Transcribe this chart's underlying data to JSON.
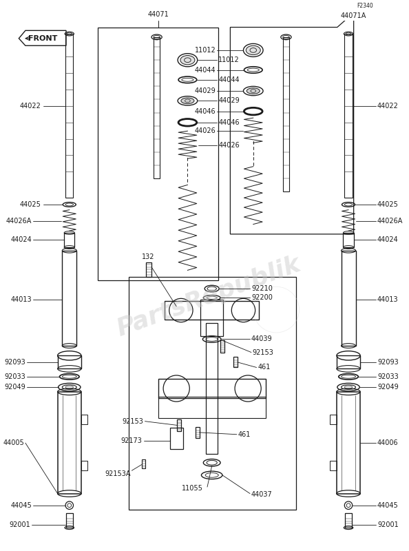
{
  "bg_color": "#ffffff",
  "line_color": "#1a1a1a",
  "label_color": "#1a1a1a",
  "watermark": "PartsRepublik",
  "fig_code": "F2340",
  "assembly_code": "44071A",
  "left_box_label": "44071",
  "font_size": 7.0
}
